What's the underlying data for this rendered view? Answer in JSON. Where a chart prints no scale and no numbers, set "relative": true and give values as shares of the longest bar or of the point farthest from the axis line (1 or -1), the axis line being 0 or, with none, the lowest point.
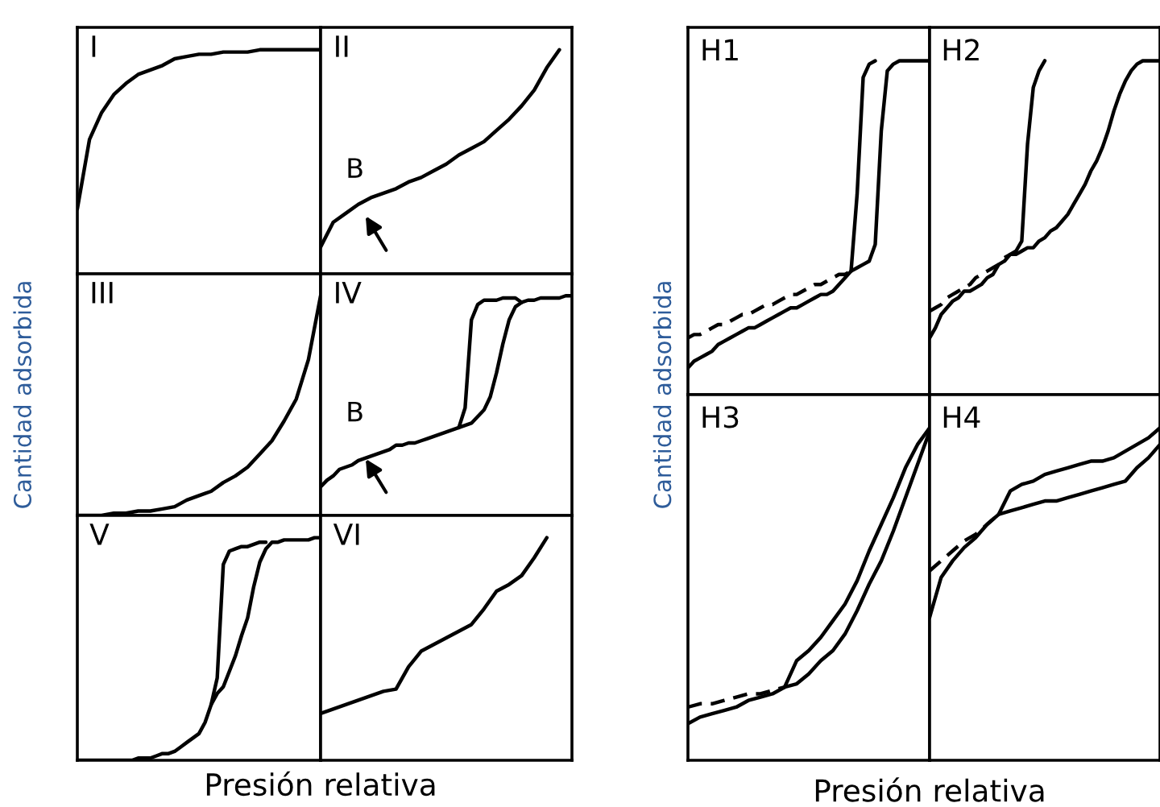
{
  "chart_data": [
    {
      "type": "line",
      "title": "I",
      "relative": true,
      "categories": [
        null,
        null,
        null,
        null,
        null,
        null,
        null,
        null,
        null,
        null,
        null,
        null,
        null,
        null,
        null,
        null,
        null,
        null,
        null,
        null,
        null
      ],
      "series": [
        {
          "color": "#000000",
          "values": [
            0.29,
            0.6,
            0.72,
            0.8,
            0.85,
            0.89,
            0.91,
            0.93,
            0.96,
            0.97,
            0.98,
            0.98,
            0.99,
            0.99,
            0.99,
            1.0,
            1.0,
            1.0,
            1.0,
            1.0,
            1.0
          ]
        }
      ]
    },
    {
      "type": "line",
      "title": "II",
      "relative": true,
      "annotations": [
        "B"
      ],
      "categories": [
        null,
        null,
        null,
        null,
        null,
        null,
        null,
        null,
        null,
        null,
        null,
        null,
        null,
        null,
        null,
        null,
        null,
        null,
        null,
        null,
        null
      ],
      "series": [
        {
          "color": "#000000",
          "values": [
            0.12,
            0.23,
            0.27,
            0.31,
            0.34,
            0.36,
            0.38,
            0.41,
            0.43,
            0.46,
            0.49,
            0.53,
            0.56,
            0.59,
            0.64,
            0.69,
            0.75,
            0.82,
            0.92,
            1.0,
            null
          ]
        }
      ]
    },
    {
      "type": "line",
      "title": "III",
      "ylabel": "Cantidad adsorbida",
      "relative": true,
      "categories": [
        null,
        null,
        null,
        null,
        null,
        null,
        null,
        null,
        null,
        null,
        null,
        null,
        null,
        null,
        null,
        null,
        null,
        null,
        null,
        null,
        null
      ],
      "series": [
        {
          "color": "#000000",
          "values": [
            0,
            0,
            0,
            0.01,
            0.01,
            0.02,
            0.02,
            0.03,
            0.04,
            0.07,
            0.09,
            0.11,
            0.15,
            0.18,
            0.22,
            0.28,
            0.34,
            0.43,
            0.53,
            0.71,
            1.0
          ]
        }
      ]
    },
    {
      "type": "line",
      "title": "IV",
      "relative": true,
      "annotations": [
        "B"
      ],
      "categories": [
        null,
        null,
        null,
        null,
        null,
        null,
        null,
        null,
        null,
        null,
        null,
        null,
        null,
        null,
        null,
        null,
        null,
        null,
        null,
        null,
        null,
        null,
        null,
        null,
        null,
        null,
        null,
        null,
        null,
        null,
        null,
        null,
        null,
        null,
        null,
        null,
        null,
        null,
        null,
        null,
        null
      ],
      "series": [
        {
          "color": "#000000",
          "values": [
            0.13,
            0.16,
            0.18,
            0.21,
            0.22,
            0.23,
            0.25,
            0.26,
            0.27,
            0.28,
            0.29,
            0.3,
            0.32,
            0.32,
            0.33,
            0.33,
            0.34,
            0.35,
            0.36,
            0.37,
            0.38,
            0.39,
            0.4,
            0.41,
            0.42,
            0.45,
            0.48,
            0.54,
            0.65,
            0.78,
            0.89,
            0.95,
            0.97,
            0.98,
            0.98,
            0.99,
            0.99,
            0.99,
            0.99,
            1.0,
            1.0
          ]
        },
        {
          "color": "#000000",
          "values": [
            null,
            null,
            null,
            null,
            null,
            null,
            null,
            null,
            null,
            null,
            null,
            null,
            null,
            null,
            null,
            null,
            null,
            null,
            null,
            null,
            null,
            null,
            0.4,
            0.49,
            0.89,
            0.96,
            0.98,
            0.98,
            0.98,
            0.99,
            0.99,
            0.99,
            0.97,
            null,
            null,
            null,
            null,
            null,
            null,
            null,
            null
          ]
        }
      ]
    },
    {
      "type": "line",
      "title": "V",
      "xlabel": "Presión relativa",
      "relative": true,
      "categories": [
        null,
        null,
        null,
        null,
        null,
        null,
        null,
        null,
        null,
        null,
        null,
        null,
        null,
        null,
        null,
        null,
        null,
        null,
        null,
        null,
        null,
        null,
        null,
        null,
        null,
        null,
        null,
        null,
        null,
        null,
        null,
        null,
        null,
        null,
        null,
        null,
        null,
        null,
        null,
        null,
        null
      ],
      "series": [
        {
          "color": "#000000",
          "values": [
            0,
            0,
            0,
            0,
            0,
            0,
            0,
            0,
            0,
            0.0,
            0.01,
            0.01,
            0.01,
            0.02,
            0.03,
            0.03,
            0.04,
            0.06,
            0.08,
            0.1,
            0.12,
            0.17,
            0.25,
            0.3,
            0.33,
            0.4,
            0.47,
            0.56,
            0.64,
            0.78,
            0.89,
            0.95,
            0.98,
            0.98,
            0.99,
            0.99,
            0.99,
            0.99,
            0.99,
            1.0,
            1.0
          ]
        },
        {
          "color": "#000000",
          "values": [
            null,
            null,
            null,
            null,
            null,
            null,
            null,
            null,
            null,
            null,
            null,
            null,
            null,
            null,
            null,
            null,
            null,
            null,
            null,
            null,
            null,
            null,
            0.25,
            0.37,
            0.88,
            0.94,
            0.95,
            0.96,
            0.96,
            0.97,
            0.98,
            0.98,
            null,
            null,
            null,
            null,
            null,
            null,
            null,
            null,
            null
          ]
        }
      ]
    },
    {
      "type": "line",
      "title": "VI",
      "relative": true,
      "categories": [
        null,
        null,
        null,
        null,
        null,
        null,
        null,
        null,
        null,
        null,
        null,
        null,
        null,
        null,
        null,
        null,
        null,
        null,
        null,
        null,
        null
      ],
      "series": [
        {
          "color": "#000000",
          "values": [
            0.21,
            0.23,
            0.25,
            0.27,
            0.29,
            0.31,
            0.32,
            0.42,
            0.49,
            0.52,
            0.55,
            0.58,
            0.61,
            0.68,
            0.76,
            0.79,
            0.83,
            0.91,
            1.0,
            null,
            null
          ]
        }
      ]
    },
    {
      "type": "line",
      "title": "H1",
      "ylabel": "Cantidad adsorbida",
      "relative": true,
      "categories": [
        null,
        null,
        null,
        null,
        null,
        null,
        null,
        null,
        null,
        null,
        null,
        null,
        null,
        null,
        null,
        null,
        null,
        null,
        null,
        null,
        null,
        null,
        null,
        null,
        null,
        null,
        null,
        null,
        null,
        null,
        null,
        null,
        null,
        null,
        null,
        null,
        null,
        null,
        null,
        null,
        null
      ],
      "series": [
        {
          "color": "#000000",
          "values": [
            0.08,
            0.1,
            0.11,
            0.12,
            0.13,
            0.15,
            0.16,
            0.17,
            0.18,
            0.19,
            0.2,
            0.2,
            0.21,
            0.22,
            0.23,
            0.24,
            0.25,
            0.26,
            0.26,
            0.27,
            0.28,
            0.29,
            0.3,
            0.3,
            0.31,
            0.33,
            0.35,
            0.37,
            0.38,
            0.39,
            0.4,
            0.45,
            0.79,
            0.97,
            0.99,
            1.0,
            1.0,
            1.0,
            1.0,
            1.0,
            1.0
          ]
        },
        {
          "color": "#000000",
          "values": [
            null,
            null,
            null,
            null,
            null,
            null,
            null,
            null,
            null,
            null,
            null,
            null,
            null,
            null,
            null,
            null,
            null,
            null,
            null,
            null,
            null,
            null,
            null,
            null,
            null,
            null,
            null,
            0.37,
            0.6,
            0.95,
            0.99,
            1.0,
            null,
            null,
            null,
            null,
            null,
            null,
            null,
            null,
            null
          ]
        },
        {
          "color": "#000000",
          "line_style": "dashed",
          "values": [
            0.17,
            0.18,
            0.18,
            0.19,
            0.2,
            0.21,
            0.21,
            0.22,
            0.23,
            0.24,
            0.24,
            0.25,
            0.26,
            0.27,
            0.27,
            0.28,
            0.29,
            0.3,
            0.3,
            0.31,
            0.32,
            0.33,
            0.33,
            0.34,
            0.35,
            0.36,
            0.36,
            0.37,
            null,
            null,
            null,
            null,
            null,
            null,
            null,
            null,
            null,
            null,
            null,
            null,
            null
          ]
        }
      ]
    },
    {
      "type": "line",
      "title": "H2",
      "relative": true,
      "categories": [
        null,
        null,
        null,
        null,
        null,
        null,
        null,
        null,
        null,
        null,
        null,
        null,
        null,
        null,
        null,
        null,
        null,
        null,
        null,
        null,
        null,
        null,
        null,
        null,
        null,
        null,
        null,
        null,
        null,
        null,
        null,
        null,
        null,
        null,
        null,
        null,
        null,
        null,
        null,
        null,
        null
      ],
      "series": [
        {
          "color": "#000000",
          "values": [
            0.17,
            0.2,
            0.24,
            0.26,
            0.28,
            0.29,
            0.31,
            0.31,
            0.32,
            0.33,
            0.35,
            0.36,
            0.39,
            0.4,
            0.42,
            0.42,
            0.43,
            0.44,
            0.44,
            0.46,
            0.47,
            0.49,
            0.5,
            0.52,
            0.54,
            0.57,
            0.6,
            0.63,
            0.67,
            0.7,
            0.74,
            0.79,
            0.85,
            0.9,
            0.94,
            0.97,
            0.99,
            1.0,
            1.0,
            1.0,
            1.0
          ]
        },
        {
          "color": "#000000",
          "values": [
            null,
            null,
            null,
            null,
            null,
            null,
            null,
            null,
            null,
            null,
            null,
            null,
            null,
            null,
            0.42,
            0.43,
            0.46,
            0.75,
            0.92,
            0.97,
            1.0,
            null,
            null,
            null,
            null,
            null,
            null,
            null,
            null,
            null,
            null,
            null,
            null,
            null,
            null,
            null,
            null,
            null,
            null,
            null,
            null
          ]
        },
        {
          "color": "#000000",
          "line_style": "dashed",
          "values": [
            0.25,
            0.26,
            0.27,
            0.29,
            0.3,
            0.31,
            0.32,
            0.33,
            0.35,
            0.36,
            0.37,
            0.38,
            0.39,
            0.41,
            0.42,
            null,
            null,
            null,
            null,
            null,
            null,
            null,
            null,
            null,
            null,
            null,
            null,
            null,
            null,
            null,
            null,
            null,
            null,
            null,
            null,
            null,
            null,
            null,
            null,
            null,
            null
          ]
        }
      ]
    },
    {
      "type": "line",
      "title": "H3",
      "xlabel": "Presión relativa",
      "relative": true,
      "categories": [
        null,
        null,
        null,
        null,
        null,
        null,
        null,
        null,
        null,
        null,
        null,
        null,
        null,
        null,
        null,
        null,
        null,
        null,
        null,
        null,
        null
      ],
      "series": [
        {
          "color": "#000000",
          "values": [
            0.11,
            0.13,
            0.14,
            0.15,
            0.16,
            0.18,
            0.19,
            0.2,
            0.22,
            0.23,
            0.26,
            0.3,
            0.33,
            0.38,
            0.45,
            0.53,
            0.6,
            0.69,
            0.79,
            0.89,
            0.99
          ]
        },
        {
          "color": "#000000",
          "values": [
            null,
            null,
            null,
            null,
            null,
            null,
            null,
            null,
            0.22,
            0.3,
            0.33,
            0.37,
            0.42,
            0.47,
            0.54,
            0.63,
            0.71,
            0.79,
            0.88,
            0.95,
            1.0
          ]
        },
        {
          "color": "#000000",
          "line_style": "dashed",
          "values": [
            0.16,
            0.17,
            0.17,
            0.18,
            0.19,
            0.2,
            0.2,
            0.21,
            0.22,
            null,
            null,
            null,
            null,
            null,
            null,
            null,
            null,
            null,
            null,
            null,
            null
          ]
        }
      ]
    },
    {
      "type": "line",
      "title": "H4",
      "relative": true,
      "categories": [
        null,
        null,
        null,
        null,
        null,
        null,
        null,
        null,
        null,
        null,
        null,
        null,
        null,
        null,
        null,
        null,
        null,
        null,
        null,
        null,
        null
      ],
      "series": [
        {
          "color": "#000000",
          "values": [
            0.43,
            0.55,
            0.6,
            0.64,
            0.67,
            0.71,
            0.74,
            0.75,
            0.76,
            0.77,
            0.78,
            0.78,
            0.79,
            0.8,
            0.81,
            0.82,
            0.83,
            0.84,
            0.88,
            0.91,
            0.95
          ]
        },
        {
          "color": "#000000",
          "values": [
            null,
            null,
            null,
            null,
            null,
            null,
            0.74,
            0.81,
            0.83,
            0.84,
            0.86,
            0.87,
            0.88,
            0.89,
            0.9,
            0.9,
            0.91,
            0.93,
            0.95,
            0.97,
            1.0
          ]
        },
        {
          "color": "#000000",
          "line_style": "dashed",
          "values": [
            0.57,
            0.6,
            0.63,
            0.66,
            0.68,
            0.71,
            0.74,
            null,
            null,
            null,
            null,
            null,
            null,
            null,
            null,
            null,
            null,
            null,
            null,
            null,
            null
          ]
        }
      ]
    }
  ]
}
